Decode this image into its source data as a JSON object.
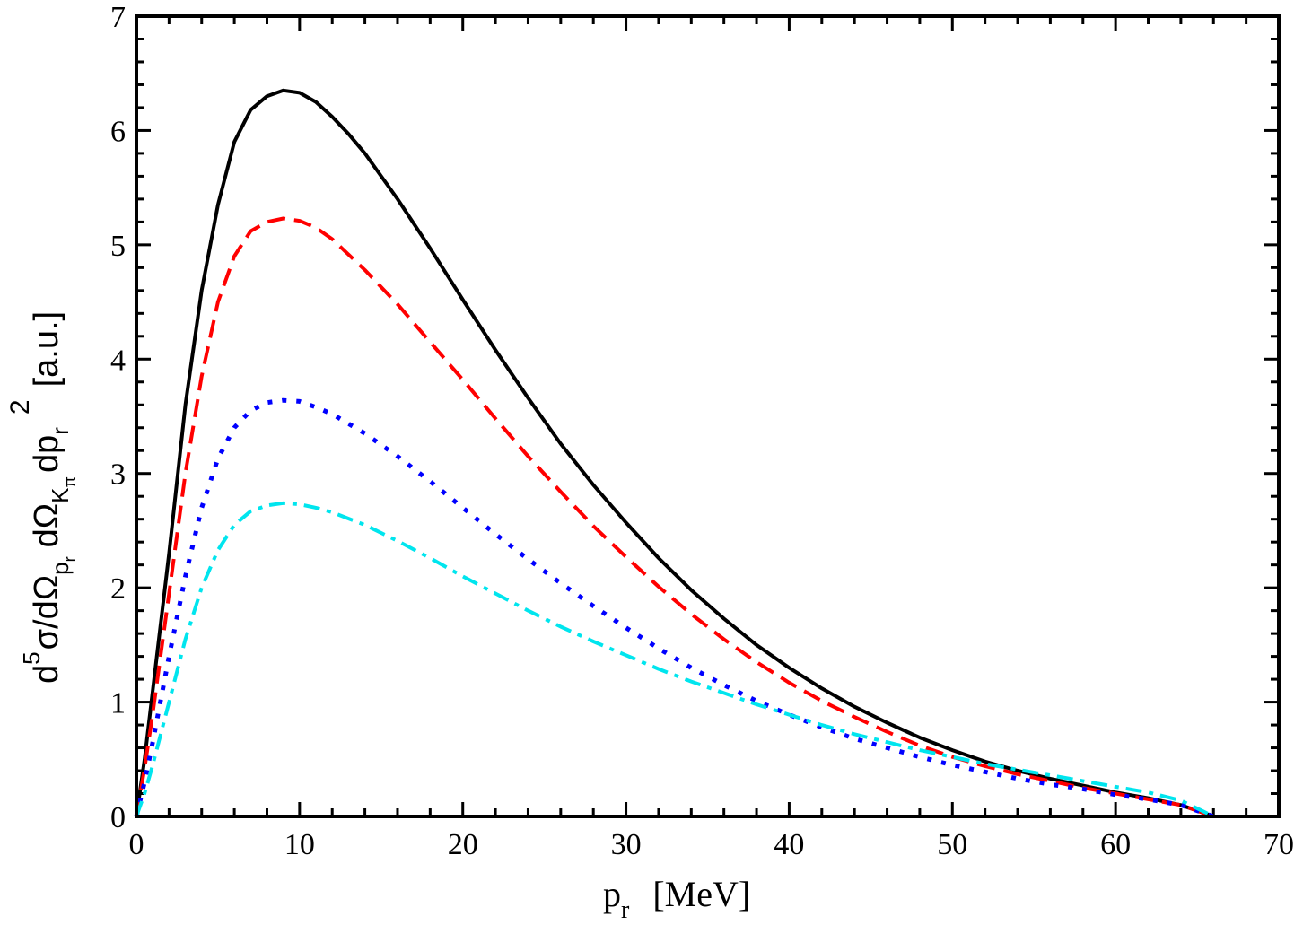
{
  "chart_data": {
    "type": "line",
    "title": "",
    "xlabel": {
      "main": "p",
      "sub": "r",
      "unit": "[MeV]"
    },
    "ylabel": {
      "p1": "d",
      "p1_sup": "5",
      "p2": "σ/dΩ",
      "p2_sub": "p",
      "p2_subsub": "r",
      "p3": "dΩ",
      "p3_sub": "K",
      "p3_subsub": "π",
      "p4": "dp",
      "p4_sub": "r",
      "p4_sup": "2",
      "unit": "[a.u.]"
    },
    "xlim": [
      0,
      70
    ],
    "ylim": [
      0,
      7
    ],
    "xticks": [
      0,
      10,
      20,
      30,
      40,
      50,
      60,
      70
    ],
    "yticks": [
      0,
      1,
      2,
      3,
      4,
      5,
      6,
      7
    ],
    "grid": false,
    "legend": "none",
    "series": [
      {
        "color": "#000000",
        "style": "solid",
        "x": [
          0,
          0.5,
          1,
          2,
          3,
          4,
          5,
          6,
          7,
          8,
          9,
          10,
          11,
          12,
          13,
          14,
          15,
          16,
          18,
          20,
          22,
          24,
          26,
          28,
          30,
          32,
          34,
          36,
          38,
          40,
          42,
          44,
          46,
          48,
          50,
          52,
          54,
          56,
          58,
          60,
          62,
          64,
          65,
          66
        ],
        "y": [
          0,
          0.5,
          1.1,
          2.3,
          3.6,
          4.6,
          5.35,
          5.9,
          6.18,
          6.3,
          6.35,
          6.33,
          6.25,
          6.12,
          5.97,
          5.8,
          5.6,
          5.4,
          4.97,
          4.52,
          4.08,
          3.66,
          3.26,
          2.9,
          2.57,
          2.26,
          1.98,
          1.73,
          1.5,
          1.3,
          1.12,
          0.96,
          0.82,
          0.69,
          0.58,
          0.48,
          0.4,
          0.33,
          0.27,
          0.21,
          0.16,
          0.1,
          0.05,
          0
        ]
      },
      {
        "color": "#ff0000",
        "style": "dashed",
        "x": [
          0,
          0.5,
          1,
          2,
          3,
          4,
          5,
          6,
          7,
          8,
          9,
          10,
          11,
          12,
          14,
          16,
          18,
          20,
          22,
          24,
          26,
          28,
          30,
          32,
          34,
          36,
          38,
          40,
          42,
          44,
          46,
          48,
          50,
          52,
          54,
          56,
          58,
          60,
          62,
          64,
          65,
          66
        ],
        "y": [
          0,
          0.42,
          0.9,
          1.95,
          3.0,
          3.85,
          4.5,
          4.9,
          5.12,
          5.2,
          5.23,
          5.21,
          5.15,
          5.05,
          4.78,
          4.48,
          4.15,
          3.82,
          3.48,
          3.15,
          2.84,
          2.54,
          2.27,
          2.01,
          1.77,
          1.55,
          1.35,
          1.17,
          1.01,
          0.87,
          0.74,
          0.62,
          0.52,
          0.44,
          0.37,
          0.31,
          0.25,
          0.2,
          0.15,
          0.1,
          0.05,
          0
        ]
      },
      {
        "color": "#0000ff",
        "style": "dotted",
        "x": [
          0,
          0.5,
          1,
          2,
          3,
          4,
          5,
          6,
          7,
          8,
          9,
          10,
          11,
          12,
          14,
          16,
          18,
          20,
          22,
          24,
          26,
          28,
          30,
          32,
          34,
          36,
          38,
          40,
          42,
          44,
          46,
          48,
          50,
          52,
          54,
          56,
          58,
          60,
          62,
          64,
          65,
          66
        ],
        "y": [
          0,
          0.3,
          0.65,
          1.4,
          2.1,
          2.7,
          3.13,
          3.4,
          3.55,
          3.62,
          3.64,
          3.63,
          3.58,
          3.52,
          3.35,
          3.15,
          2.93,
          2.7,
          2.47,
          2.25,
          2.04,
          1.84,
          1.65,
          1.47,
          1.3,
          1.15,
          1.01,
          0.89,
          0.78,
          0.68,
          0.6,
          0.52,
          0.45,
          0.39,
          0.33,
          0.28,
          0.24,
          0.19,
          0.15,
          0.1,
          0.05,
          0
        ]
      },
      {
        "color": "#00e5ee",
        "style": "dashdot",
        "x": [
          0,
          0.5,
          1,
          2,
          3,
          4,
          5,
          6,
          7,
          8,
          9,
          10,
          11,
          12,
          14,
          16,
          18,
          20,
          22,
          24,
          26,
          28,
          30,
          32,
          34,
          36,
          38,
          40,
          42,
          44,
          46,
          48,
          50,
          52,
          54,
          56,
          58,
          60,
          62,
          64,
          65,
          66
        ],
        "y": [
          0,
          0.2,
          0.45,
          1.0,
          1.55,
          2.0,
          2.33,
          2.55,
          2.67,
          2.72,
          2.74,
          2.73,
          2.7,
          2.66,
          2.55,
          2.41,
          2.26,
          2.1,
          1.95,
          1.8,
          1.66,
          1.53,
          1.41,
          1.29,
          1.18,
          1.08,
          0.98,
          0.89,
          0.8,
          0.72,
          0.65,
          0.58,
          0.52,
          0.46,
          0.41,
          0.36,
          0.31,
          0.26,
          0.21,
          0.14,
          0.07,
          0
        ]
      }
    ]
  }
}
